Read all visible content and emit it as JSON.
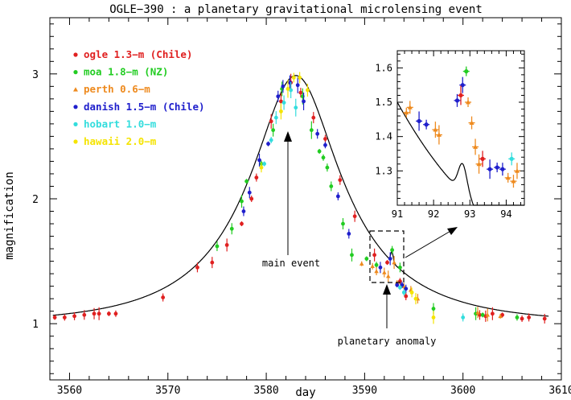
{
  "chart_data": {
    "type": "scatter",
    "title": "OGLE−390 : a planetary gravitational microlensing event",
    "xlabel": "day",
    "ylabel": "magnification",
    "xlim": [
      3558,
      3610
    ],
    "ylim": [
      0.55,
      3.45
    ],
    "xticks": [
      "3560",
      "3570",
      "3580",
      "3590",
      "3600",
      "3610"
    ],
    "yticks": [
      "1",
      "2",
      "3"
    ],
    "annotations": {
      "main": "main event",
      "planet": "planetary anomaly"
    },
    "series": [
      {
        "name": "ogle 1.3−m (Chile)",
        "color": "#e02020",
        "marker": "circle",
        "x": [
          3558.5,
          3559.5,
          3560.5,
          3561.5,
          3562.5,
          3563,
          3564,
          3564.7,
          3569.5,
          3573,
          3574.5,
          3576,
          3577.5,
          3578.5,
          3579,
          3580.5,
          3581.5,
          3582.5,
          3583.5,
          3584.8,
          3586,
          3587.5,
          3589,
          3591,
          3592.3,
          3593.6,
          3594.2,
          3601.7,
          3602.3,
          3603,
          3604,
          3606,
          3606.7,
          3608.3
        ],
        "y": [
          1.05,
          1.05,
          1.06,
          1.07,
          1.08,
          1.08,
          1.08,
          1.08,
          1.21,
          1.45,
          1.49,
          1.63,
          1.8,
          2.0,
          2.17,
          2.62,
          2.78,
          2.93,
          2.85,
          2.65,
          2.48,
          2.15,
          1.86,
          1.55,
          1.49,
          1.34,
          1.22,
          1.07,
          1.06,
          1.08,
          1.07,
          1.04,
          1.05,
          1.04
        ]
      },
      {
        "name": "moa 1.8−m (NZ)",
        "color": "#22cc22",
        "marker": "circle",
        "x": [
          3575,
          3576.5,
          3577.5,
          3578,
          3579.5,
          3580.7,
          3581.6,
          3583.7,
          3584.6,
          3585.4,
          3585.8,
          3586.2,
          3586.6,
          3587.8,
          3588.7,
          3590.2,
          3591.2,
          3592.8,
          3593.6,
          3597,
          3601.3,
          3602,
          3605.5
        ],
        "y": [
          1.62,
          1.76,
          1.98,
          2.14,
          2.28,
          2.55,
          2.88,
          2.82,
          2.55,
          2.38,
          2.33,
          2.25,
          2.1,
          1.8,
          1.55,
          1.52,
          1.47,
          1.59,
          1.45,
          1.12,
          1.08,
          1.07,
          1.05
        ]
      },
      {
        "name": "perth 0.6−m",
        "color": "#ee8a1e",
        "marker": "triangle",
        "x": [
          3589.7,
          3590.8,
          3591.2,
          3592.0,
          3592.4,
          3593.0,
          3593.3,
          3594.0,
          3594.7,
          3595.4,
          3601.5,
          3602.5,
          3603.8
        ],
        "y": [
          1.48,
          1.46,
          1.42,
          1.41,
          1.38,
          1.49,
          1.33,
          1.3,
          1.27,
          1.2,
          1.09,
          1.07,
          1.06
        ]
      },
      {
        "name": "danish 1.5−m (Chile)",
        "color": "#1f1fcc",
        "marker": "circle",
        "x": [
          3577.7,
          3578.3,
          3579.3,
          3580.2,
          3581.2,
          3581.7,
          3582.4,
          3583.2,
          3583.8,
          3585.2,
          3586,
          3587.3,
          3588.4,
          3591.6,
          3592.6,
          3593.3,
          3593.8,
          3594.2
        ],
        "y": [
          1.9,
          2.05,
          2.31,
          2.44,
          2.82,
          2.9,
          2.93,
          2.91,
          2.78,
          2.52,
          2.43,
          2.02,
          1.72,
          1.45,
          1.52,
          1.31,
          1.31,
          1.28
        ]
      },
      {
        "name": "hobart 1.0−m",
        "color": "#33dddd",
        "marker": "circle",
        "x": [
          3579.8,
          3580.5,
          3581,
          3581.8,
          3582.5,
          3583,
          3593.6,
          3594,
          3600
        ],
        "y": [
          2.28,
          2.47,
          2.65,
          2.77,
          2.87,
          2.73,
          1.29,
          1.25,
          1.05
        ]
      },
      {
        "name": "hawaii 2.0−m",
        "color": "#f5e400",
        "marker": "circle",
        "x": [
          3579.5,
          3581.5,
          3582.2,
          3582.8,
          3583.4,
          3584.2,
          3594.8,
          3595.2,
          3597
        ],
        "y": [
          2.25,
          2.7,
          2.88,
          2.97,
          2.97,
          2.87,
          1.25,
          1.2,
          1.05
        ]
      }
    ],
    "inset": {
      "xlim": [
        91,
        94.5
      ],
      "ylim": [
        1.2,
        1.65
      ],
      "xticks": [
        "91",
        "92",
        "93",
        "94"
      ],
      "yticks": [
        "1.3",
        "1.4",
        "1.5",
        "1.6"
      ],
      "points": [
        {
          "series": "perth 0.6−m",
          "x": 91.25,
          "y": 1.47
        },
        {
          "series": "perth 0.6−m",
          "x": 91.35,
          "y": 1.485
        },
        {
          "series": "perth 0.6−m",
          "x": 92.05,
          "y": 1.42
        },
        {
          "series": "perth 0.6−m",
          "x": 92.15,
          "y": 1.405
        },
        {
          "series": "perth 0.6−m",
          "x": 92.95,
          "y": 1.5
        },
        {
          "series": "perth 0.6−m",
          "x": 93.05,
          "y": 1.44
        },
        {
          "series": "perth 0.6−m",
          "x": 93.15,
          "y": 1.37
        },
        {
          "series": "perth 0.6−m",
          "x": 93.25,
          "y": 1.32
        },
        {
          "series": "perth 0.6−m",
          "x": 94.05,
          "y": 1.28
        },
        {
          "series": "perth 0.6−m",
          "x": 94.2,
          "y": 1.27
        },
        {
          "series": "perth 0.6−m",
          "x": 94.3,
          "y": 1.3
        },
        {
          "series": "danish 1.5−m (Chile)",
          "x": 91.6,
          "y": 1.445
        },
        {
          "series": "danish 1.5−m (Chile)",
          "x": 91.8,
          "y": 1.435
        },
        {
          "series": "danish 1.5−m (Chile)",
          "x": 92.65,
          "y": 1.505
        },
        {
          "series": "danish 1.5−m (Chile)",
          "x": 92.8,
          "y": 1.55
        },
        {
          "series": "danish 1.5−m (Chile)",
          "x": 93.55,
          "y": 1.305
        },
        {
          "series": "danish 1.5−m (Chile)",
          "x": 93.75,
          "y": 1.31
        },
        {
          "series": "danish 1.5−m (Chile)",
          "x": 93.9,
          "y": 1.305
        },
        {
          "series": "ogle 1.3−m (Chile)",
          "x": 93.35,
          "y": 1.335
        },
        {
          "series": "ogle 1.3−m (Chile)",
          "x": 92.75,
          "y": 1.52
        },
        {
          "series": "moa 1.8−m (NZ)",
          "x": 92.9,
          "y": 1.59
        },
        {
          "series": "hobart 1.0−m",
          "x": 94.15,
          "y": 1.335
        }
      ]
    }
  }
}
